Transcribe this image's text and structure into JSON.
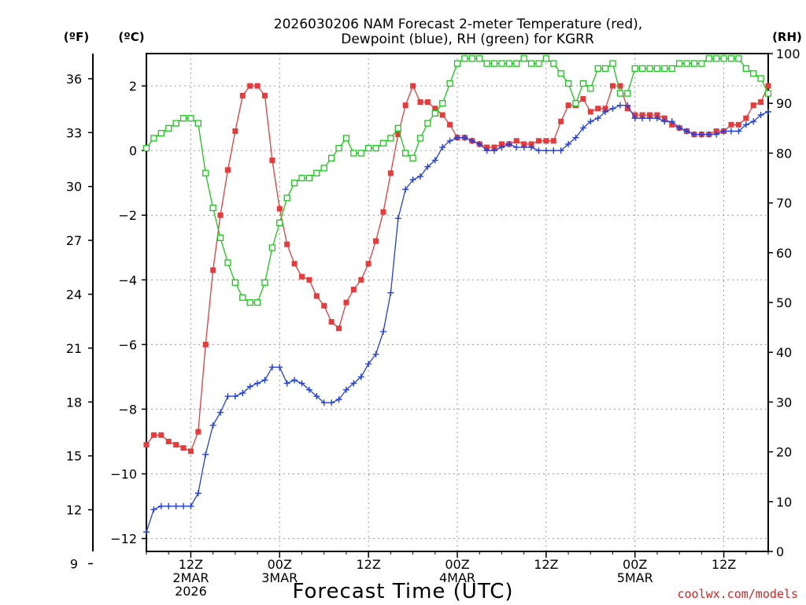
{
  "chart_data": {
    "type": "line",
    "title": [
      "2026030206 NAM Forecast 2-meter Temperature (red),",
      "Dewpoint (blue), RH (green) for KGRR"
    ],
    "xlabel": "Forecast Time (UTC)",
    "units": {
      "fahrenheit": "(ºF)",
      "celsius": "(ºC)",
      "rh": "(RH)"
    },
    "credit": "coolwx.com/models",
    "x_axis": {
      "range_hours": [
        0,
        84
      ],
      "ticks": [
        {
          "hour": 6,
          "lines": [
            "12Z",
            "2MAR",
            "2026"
          ]
        },
        {
          "hour": 18,
          "lines": [
            "00Z",
            "3MAR"
          ]
        },
        {
          "hour": 30,
          "lines": [
            "12Z"
          ]
        },
        {
          "hour": 42,
          "lines": [
            "00Z",
            "4MAR"
          ]
        },
        {
          "hour": 54,
          "lines": [
            "12Z"
          ]
        },
        {
          "hour": 66,
          "lines": [
            "00Z",
            "5MAR"
          ]
        },
        {
          "hour": 78,
          "lines": [
            "12Z"
          ]
        }
      ]
    },
    "y_left_celsius": {
      "range": [
        -12.4,
        3.0
      ],
      "ticks": [
        2,
        0,
        -2,
        -4,
        -6,
        -8,
        -10,
        -12
      ],
      "tick_labels": [
        "2",
        "0",
        "−2",
        "−4",
        "−6",
        "−8",
        "−10",
        "−12"
      ]
    },
    "y_far_left_fahrenheit": {
      "ticks": [
        36,
        33,
        30,
        27,
        24,
        21,
        18,
        15,
        12,
        9
      ]
    },
    "y_right_rh": {
      "range": [
        0,
        100
      ],
      "ticks": [
        100,
        90,
        80,
        70,
        60,
        50,
        40,
        30,
        20,
        10,
        0
      ]
    },
    "grid": true,
    "x": [
      0,
      1,
      2,
      3,
      4,
      5,
      6,
      7,
      8,
      9,
      10,
      11,
      12,
      13,
      14,
      15,
      16,
      17,
      18,
      19,
      20,
      21,
      22,
      23,
      24,
      25,
      26,
      27,
      28,
      29,
      30,
      31,
      32,
      33,
      34,
      35,
      36,
      37,
      38,
      39,
      40,
      41,
      42,
      43,
      44,
      45,
      46,
      47,
      48,
      49,
      50,
      51,
      52,
      53,
      54,
      55,
      56,
      57,
      58,
      59,
      60,
      61,
      62,
      63,
      64,
      65,
      66,
      67,
      68,
      69,
      70,
      71,
      72,
      73,
      74,
      75,
      76,
      77,
      78,
      79,
      80,
      81,
      82,
      83,
      84
    ],
    "series": [
      {
        "name": "Temperature",
        "color": "#e83a3a",
        "marker": "filled-square",
        "axis": "celsius",
        "values": [
          -9.1,
          -8.8,
          -8.8,
          -9.0,
          -9.1,
          -9.2,
          -9.3,
          -8.7,
          -6.0,
          -3.7,
          -2.0,
          -0.6,
          0.6,
          1.7,
          2.0,
          2.0,
          1.7,
          -0.3,
          -1.8,
          -2.9,
          -3.5,
          -3.9,
          -4.0,
          -4.5,
          -4.8,
          -5.3,
          -5.5,
          -4.7,
          -4.3,
          -4.0,
          -3.5,
          -2.8,
          -1.9,
          -0.7,
          0.5,
          1.4,
          2.0,
          1.5,
          1.5,
          1.3,
          1.1,
          0.8,
          0.4,
          0.4,
          0.3,
          0.2,
          0.1,
          0.1,
          0.2,
          0.2,
          0.3,
          0.2,
          0.2,
          0.3,
          0.3,
          0.3,
          0.9,
          1.4,
          1.4,
          1.6,
          1.2,
          1.3,
          1.3,
          2.0,
          2.0,
          1.3,
          1.1,
          1.1,
          1.1,
          1.1,
          1.0,
          0.8,
          0.7,
          0.6,
          0.5,
          0.5,
          0.5,
          0.6,
          0.6,
          0.8,
          0.8,
          1.0,
          1.4,
          1.5,
          2.0
        ]
      },
      {
        "name": "Dewpoint",
        "color": "#2040e0",
        "marker": "plus",
        "axis": "celsius",
        "values": [
          -11.8,
          -11.1,
          -11.0,
          -11.0,
          -11.0,
          -11.0,
          -11.0,
          -10.6,
          -9.4,
          -8.5,
          -8.1,
          -7.6,
          -7.6,
          -7.5,
          -7.3,
          -7.2,
          -7.1,
          -6.7,
          -6.7,
          -7.2,
          -7.1,
          -7.2,
          -7.4,
          -7.6,
          -7.8,
          -7.8,
          -7.7,
          -7.4,
          -7.2,
          -7.0,
          -6.6,
          -6.3,
          -5.6,
          -4.4,
          -2.1,
          -1.2,
          -0.9,
          -0.8,
          -0.5,
          -0.3,
          0.1,
          0.3,
          0.4,
          0.4,
          0.3,
          0.2,
          0.0,
          0.0,
          0.1,
          0.2,
          0.1,
          0.1,
          0.1,
          0.0,
          0.0,
          0.0,
          0.0,
          0.2,
          0.4,
          0.7,
          0.9,
          1.0,
          1.2,
          1.3,
          1.4,
          1.4,
          1.0,
          1.0,
          1.0,
          1.0,
          0.9,
          0.9,
          0.7,
          0.6,
          0.5,
          0.5,
          0.5,
          0.5,
          0.6,
          0.6,
          0.6,
          0.8,
          0.9,
          1.1,
          1.2
        ]
      },
      {
        "name": "RH",
        "color": "#18c818",
        "marker": "open-square",
        "axis": "rh",
        "values": [
          81,
          83,
          84,
          85,
          86,
          87,
          87,
          86,
          76,
          69,
          63,
          58,
          54,
          51,
          50,
          50,
          54,
          61,
          66,
          71,
          74,
          75,
          75,
          76,
          77,
          79,
          81,
          83,
          80,
          80,
          81,
          81,
          82,
          83,
          85,
          80,
          79,
          83,
          86,
          88,
          90,
          94,
          98,
          99,
          99,
          99,
          98,
          98,
          98,
          98,
          98,
          99,
          98,
          98,
          99,
          98,
          96,
          94,
          90,
          94,
          93,
          97,
          97,
          98,
          92,
          92,
          97,
          97,
          97,
          97,
          97,
          97,
          98,
          98,
          98,
          98,
          99,
          99,
          99,
          99,
          99,
          97,
          96,
          95,
          92
        ]
      }
    ]
  }
}
